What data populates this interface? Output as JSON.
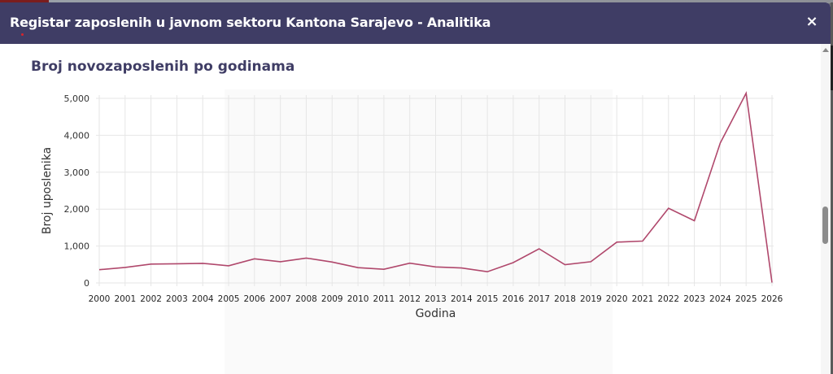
{
  "modal": {
    "title": "Registar zaposlenih u javnom sektoru Kantona Sarajevo - Analitika",
    "close_icon": "×"
  },
  "chart_section": {
    "title": "Broj novozaposlenih po godinama"
  },
  "colors": {
    "header_bg": "#3f3d65",
    "title_text": "#3f3d65",
    "line": "#b0486c",
    "grid": "#e6e6e6"
  },
  "chart_data": {
    "type": "line",
    "title": "Broj novozaposlenih po godinama",
    "xlabel": "Godina",
    "ylabel": "Broj uposlenika",
    "ylim": [
      0,
      5000
    ],
    "yticks": [
      "0",
      "1,000",
      "2,000",
      "3,000",
      "4,000",
      "5,000"
    ],
    "grid": true,
    "legend": false,
    "x": [
      "2000",
      "2001",
      "2002",
      "2003",
      "2004",
      "2005",
      "2006",
      "2007",
      "2008",
      "2009",
      "2010",
      "2011",
      "2012",
      "2013",
      "2014",
      "2015",
      "2016",
      "2017",
      "2018",
      "2019",
      "2020",
      "2021",
      "2022",
      "2023",
      "2024",
      "2025",
      "2026"
    ],
    "series": [
      {
        "name": "Broj uposlenika",
        "values": [
          360,
          420,
          510,
          520,
          530,
          465,
          655,
          575,
          675,
          565,
          415,
          370,
          535,
          435,
          405,
          305,
          550,
          925,
          495,
          575,
          1105,
          1135,
          2025,
          1685,
          3790,
          5140,
          10
        ]
      }
    ]
  }
}
